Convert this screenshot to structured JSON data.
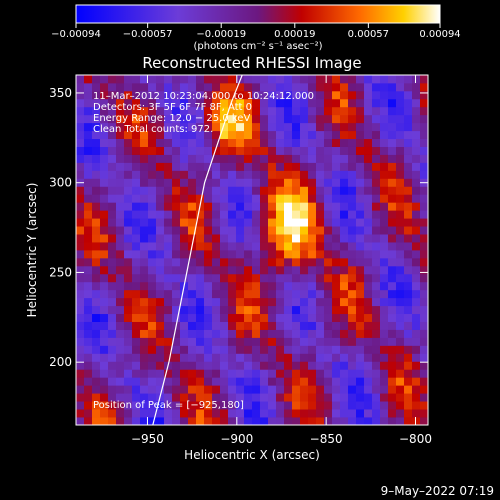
{
  "chart_data": {
    "type": "heatmap",
    "title": "Reconstructed RHESSI Image",
    "xlabel": "Heliocentric X (arcsec)",
    "ylabel": "Heliocentric Y (arcsec)",
    "xlim": [
      -990,
      -793
    ],
    "ylim": [
      165,
      360
    ],
    "x_ticks": [
      -950,
      -900,
      -850,
      -800
    ],
    "x_tick_labels": [
      "−950",
      "−900",
      "−850",
      "−800"
    ],
    "y_ticks": [
      200,
      250,
      300,
      350
    ],
    "y_tick_labels": [
      "200",
      "250",
      "300",
      "350"
    ],
    "colorbar": {
      "min": -0.00094,
      "max": 0.00094,
      "ticks": [
        -0.00094,
        -0.00057,
        -0.00019,
        0.00019,
        0.00057,
        0.00094
      ],
      "tick_labels": [
        "−0.00094",
        "−0.00057",
        "−0.00019",
        "0.00019",
        "0.00057",
        "0.00094"
      ],
      "unit_label": "(photons cm⁻² s⁻¹ asec⁻²)"
    },
    "info_lines": [
      "11–Mar–2012 10:23:04.000 to 10:24:12.000",
      "Detectors: 3F 5F 6F 7F 8F, Att 0",
      "Energy Range: 12.0 − 25.0 keV",
      "Clean     Total counts: 972."
    ],
    "peak_text": "Position of Peak = [−925,180]",
    "peak": {
      "x": -925,
      "y": 180
    },
    "limb_curve": [
      [
        -947,
        165
      ],
      [
        -938,
        200
      ],
      [
        -928,
        250
      ],
      [
        -918,
        300
      ],
      [
        -903,
        345
      ],
      [
        -897,
        360
      ]
    ]
  },
  "footer_date": "9–May–2022 07:19",
  "colors": {
    "background": "#000000",
    "text": "#ffffff",
    "limb": "#ffffff"
  }
}
